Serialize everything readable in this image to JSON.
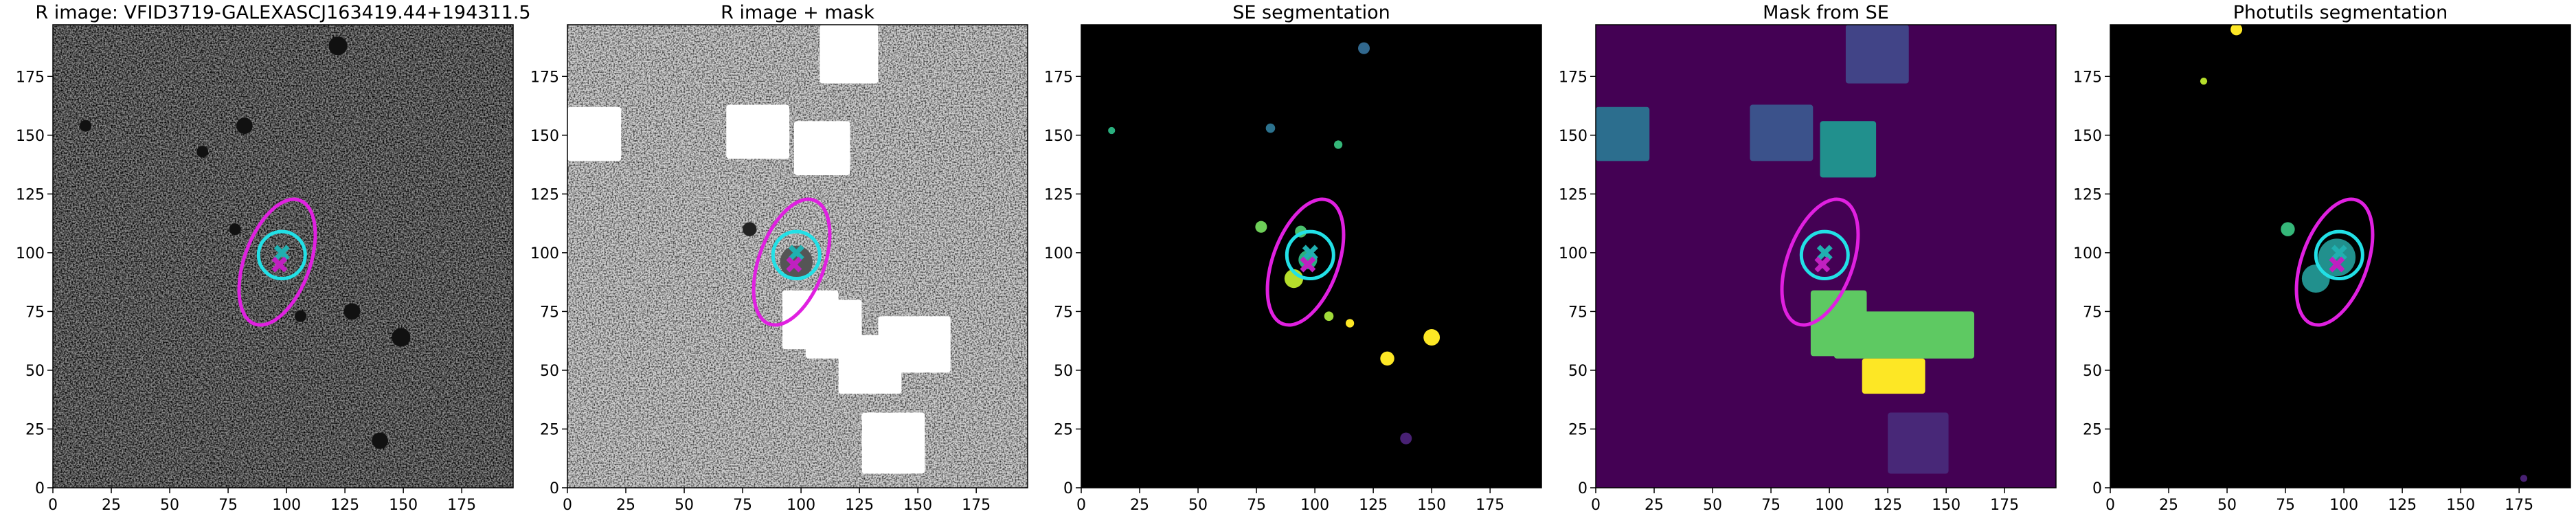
{
  "chart_data": [
    {
      "type": "image",
      "title": "R image: VFID3719-GALEXASCJ163419.44+194311.5",
      "background": "noise-dark",
      "xlim": [
        0,
        197
      ],
      "ylim": [
        0,
        197
      ],
      "xticks": [
        0,
        25,
        50,
        75,
        100,
        125,
        150,
        175
      ],
      "yticks": [
        0,
        25,
        50,
        75,
        100,
        125,
        150,
        175
      ],
      "rects": [],
      "blobs": [
        {
          "x": 122,
          "y": 188,
          "r": 4,
          "color": "#111111"
        },
        {
          "x": 82,
          "y": 154,
          "r": 3.5,
          "color": "#111111"
        },
        {
          "x": 64,
          "y": 143,
          "r": 2.5,
          "color": "#111111"
        },
        {
          "x": 128,
          "y": 75,
          "r": 3.5,
          "color": "#111111"
        },
        {
          "x": 149,
          "y": 64,
          "r": 4,
          "color": "#111111"
        },
        {
          "x": 140,
          "y": 20,
          "r": 3.5,
          "color": "#111111"
        },
        {
          "x": 14,
          "y": 154,
          "r": 2.5,
          "color": "#111111"
        },
        {
          "x": 106,
          "y": 73,
          "r": 2.5,
          "color": "#111111"
        },
        {
          "x": 78,
          "y": 110,
          "r": 2.5,
          "color": "#111111"
        }
      ],
      "circle": {
        "x": 98,
        "y": 99,
        "r": 10,
        "color": "#22e0e6"
      },
      "ellipse": {
        "x": 96,
        "y": 96,
        "rx": 14,
        "ry": 28,
        "angle": 20,
        "color": "#e020e0"
      },
      "markers": [
        {
          "x": 98,
          "y": 100,
          "color": "#20b0b0"
        },
        {
          "x": 97,
          "y": 95,
          "color": "#c020c0"
        }
      ]
    },
    {
      "type": "image",
      "title": "R image + mask",
      "background": "noise-light",
      "xlim": [
        0,
        197
      ],
      "ylim": [
        0,
        197
      ],
      "xticks": [
        0,
        25,
        50,
        75,
        100,
        125,
        150,
        175
      ],
      "yticks": [
        0,
        25,
        50,
        75,
        100,
        125,
        150,
        175
      ],
      "rects": [
        {
          "x": [
            0,
            23
          ],
          "y": [
            139,
            162
          ],
          "color": "#ffffff"
        },
        {
          "x": [
            68,
            95
          ],
          "y": [
            140,
            163
          ],
          "color": "#ffffff"
        },
        {
          "x": [
            108,
            133
          ],
          "y": [
            172,
            197
          ],
          "color": "#ffffff"
        },
        {
          "x": [
            97,
            121
          ],
          "y": [
            133,
            156
          ],
          "color": "#ffffff"
        },
        {
          "x": [
            92,
            116
          ],
          "y": [
            59,
            84
          ],
          "color": "#ffffff"
        },
        {
          "x": [
            102,
            126
          ],
          "y": [
            55,
            80
          ],
          "color": "#ffffff"
        },
        {
          "x": [
            133,
            164
          ],
          "y": [
            49,
            73
          ],
          "color": "#ffffff"
        },
        {
          "x": [
            116,
            143
          ],
          "y": [
            40,
            65
          ],
          "color": "#ffffff"
        },
        {
          "x": [
            126,
            153
          ],
          "y": [
            6,
            32
          ],
          "color": "#ffffff"
        }
      ],
      "blobs": [
        {
          "x": 78,
          "y": 110,
          "r": 3,
          "color": "#222222"
        },
        {
          "x": 98,
          "y": 96,
          "r": 7,
          "color": "#555555"
        }
      ],
      "circle": {
        "x": 98,
        "y": 99,
        "r": 10,
        "color": "#22e0e6"
      },
      "ellipse": {
        "x": 96,
        "y": 96,
        "rx": 14,
        "ry": 28,
        "angle": 20,
        "color": "#e020e0"
      },
      "markers": [
        {
          "x": 98,
          "y": 100,
          "color": "#20b0b0"
        },
        {
          "x": 97,
          "y": 95,
          "color": "#c020c0"
        }
      ]
    },
    {
      "type": "image",
      "title": "SE segmentation",
      "background": "#000000",
      "xlim": [
        0,
        197
      ],
      "ylim": [
        0,
        197
      ],
      "xticks": [
        0,
        25,
        50,
        75,
        100,
        125,
        150,
        175
      ],
      "yticks": [
        0,
        25,
        50,
        75,
        100,
        125,
        150,
        175
      ],
      "rects": [],
      "blobs": [
        {
          "x": 121,
          "y": 187,
          "r": 2.5,
          "color": "#31688e"
        },
        {
          "x": 13,
          "y": 152,
          "r": 1.5,
          "color": "#2ab07f"
        },
        {
          "x": 81,
          "y": 153,
          "r": 2,
          "color": "#2c728e"
        },
        {
          "x": 110,
          "y": 146,
          "r": 1.8,
          "color": "#35b779"
        },
        {
          "x": 77,
          "y": 111,
          "r": 2.5,
          "color": "#6ece58"
        },
        {
          "x": 94,
          "y": 109,
          "r": 2.5,
          "color": "#4ac16d"
        },
        {
          "x": 91,
          "y": 89,
          "r": 4,
          "color": "#b5de2b"
        },
        {
          "x": 97,
          "y": 97,
          "r": 4,
          "color": "#2ab07f"
        },
        {
          "x": 106,
          "y": 73,
          "r": 2,
          "color": "#a0da39"
        },
        {
          "x": 115,
          "y": 70,
          "r": 1.8,
          "color": "#fde725"
        },
        {
          "x": 131,
          "y": 55,
          "r": 3,
          "color": "#fde725"
        },
        {
          "x": 150,
          "y": 64,
          "r": 3.5,
          "color": "#fde725"
        },
        {
          "x": 139,
          "y": 21,
          "r": 2.5,
          "color": "#482173"
        }
      ],
      "circle": {
        "x": 98,
        "y": 99,
        "r": 10,
        "color": "#22e0e6"
      },
      "ellipse": {
        "x": 96,
        "y": 96,
        "rx": 14,
        "ry": 28,
        "angle": 20,
        "color": "#e020e0"
      },
      "markers": [
        {
          "x": 98,
          "y": 100,
          "color": "#20b0b0"
        },
        {
          "x": 97,
          "y": 95,
          "color": "#c020c0"
        }
      ]
    },
    {
      "type": "image",
      "title": "Mask from SE",
      "background": "#440154",
      "xlim": [
        0,
        197
      ],
      "ylim": [
        0,
        197
      ],
      "xticks": [
        0,
        25,
        50,
        75,
        100,
        125,
        150,
        175
      ],
      "yticks": [
        0,
        25,
        50,
        75,
        100,
        125,
        150,
        175
      ],
      "rects": [
        {
          "x": [
            0,
            23
          ],
          "y": [
            139,
            162
          ],
          "color": "#2c6e8e"
        },
        {
          "x": [
            66,
            93
          ],
          "y": [
            139,
            163
          ],
          "color": "#3b528b"
        },
        {
          "x": [
            107,
            134
          ],
          "y": [
            172,
            197
          ],
          "color": "#414487"
        },
        {
          "x": [
            96,
            120
          ],
          "y": [
            132,
            156
          ],
          "color": "#21908d"
        },
        {
          "x": [
            92,
            116
          ],
          "y": [
            56,
            84
          ],
          "color": "#5ec962"
        },
        {
          "x": [
            102,
            162
          ],
          "y": [
            55,
            75
          ],
          "color": "#5ec962"
        },
        {
          "x": [
            114,
            141
          ],
          "y": [
            40,
            55
          ],
          "color": "#fde725"
        },
        {
          "x": [
            125,
            151
          ],
          "y": [
            6,
            32
          ],
          "color": "#482878"
        }
      ],
      "blobs": [],
      "circle": {
        "x": 98,
        "y": 99,
        "r": 10,
        "color": "#22e0e6"
      },
      "ellipse": {
        "x": 96,
        "y": 96,
        "rx": 14,
        "ry": 28,
        "angle": 20,
        "color": "#e020e0"
      },
      "markers": [
        {
          "x": 98,
          "y": 100,
          "color": "#20b0b0"
        },
        {
          "x": 97,
          "y": 95,
          "color": "#c020c0"
        }
      ]
    },
    {
      "type": "image",
      "title": "Photutils segmentation",
      "background": "#000000",
      "xlim": [
        0,
        197
      ],
      "ylim": [
        0,
        197
      ],
      "xticks": [
        0,
        25,
        50,
        75,
        100,
        125,
        150,
        175
      ],
      "yticks": [
        0,
        25,
        50,
        75,
        100,
        125,
        150,
        175
      ],
      "rects": [],
      "blobs": [
        {
          "x": 54,
          "y": 195,
          "r": 2.5,
          "color": "#fde725"
        },
        {
          "x": 40,
          "y": 173,
          "r": 1.5,
          "color": "#b5de2b"
        },
        {
          "x": 76,
          "y": 110,
          "r": 3,
          "color": "#35b779"
        },
        {
          "x": 88,
          "y": 89,
          "r": 6,
          "color": "#21908d"
        },
        {
          "x": 97,
          "y": 98,
          "r": 8,
          "color": "#21908d"
        },
        {
          "x": 177,
          "y": 4,
          "r": 1.5,
          "color": "#482173"
        }
      ],
      "circle": {
        "x": 98,
        "y": 99,
        "r": 10,
        "color": "#22e0e6"
      },
      "ellipse": {
        "x": 96,
        "y": 96,
        "rx": 14,
        "ry": 28,
        "angle": 20,
        "color": "#e020e0"
      },
      "markers": [
        {
          "x": 98,
          "y": 100,
          "color": "#20b0b0"
        },
        {
          "x": 97,
          "y": 95,
          "color": "#c020c0"
        }
      ]
    }
  ]
}
